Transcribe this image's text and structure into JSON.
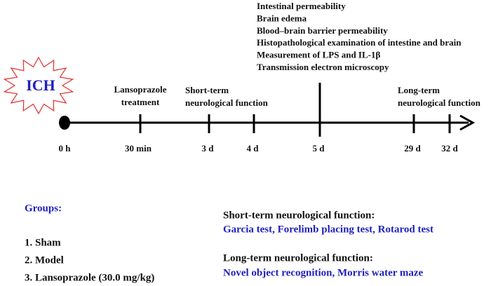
{
  "event": "ICH",
  "top_outcomes": [
    "Intestinal permeability",
    "Brain edema",
    "Blood–brain barrier permeability",
    "Histopathological examination of intestine and brain",
    "Measurement of LPS and IL-1β",
    "Transmission electron microscopy"
  ],
  "timeline": {
    "points": [
      "0 h",
      "30 min",
      "3 d",
      "4 d",
      "5 d",
      "29 d",
      "32 d"
    ],
    "treatment": [
      "Lansoprazole",
      "treatment"
    ],
    "short_term": [
      "Short-term",
      "neurological function"
    ],
    "long_term": [
      "Long-term",
      "neurological function"
    ]
  },
  "groups": {
    "title": "Groups:",
    "items": [
      "1.  Sham",
      "2.  Model",
      "3.  Lansoprazole (30.0 mg/kg)"
    ]
  },
  "tests": [
    {
      "title": "Short-term neurological function:",
      "detail": "Garcia test, Forelimb placing test, Rotarod test"
    },
    {
      "title": "Long-term neurological function:",
      "detail": "Novel object recognition, Morris water maze"
    }
  ]
}
